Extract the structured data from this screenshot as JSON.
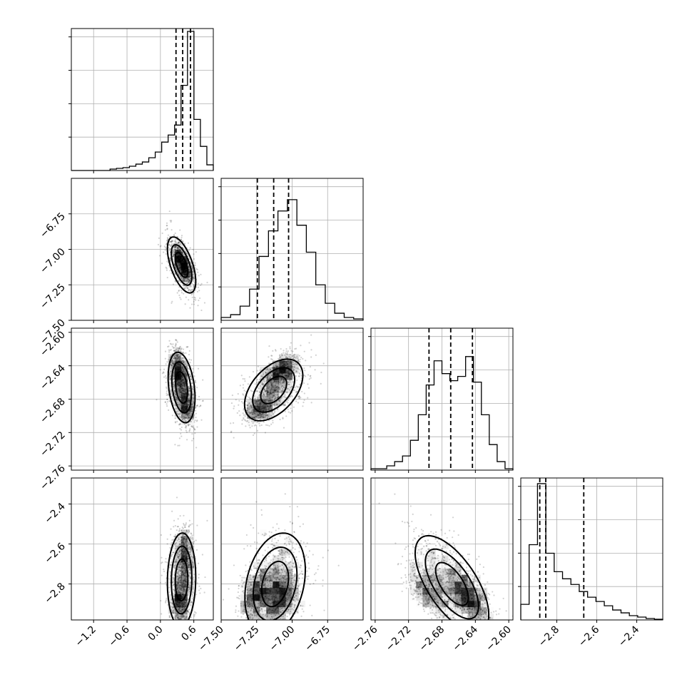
{
  "chart_data": {
    "type": "corner",
    "grid": true,
    "params": [
      {
        "range": [
          -1.6,
          0.95
        ],
        "ticks": [
          -1.2,
          -0.6,
          0.0,
          0.6
        ],
        "tick_labels": [
          "−1.2",
          "−0.6",
          "0.0",
          "0.6"
        ],
        "hist": [
          0,
          0,
          0,
          0,
          0,
          0,
          0.01,
          0.015,
          0.02,
          0.03,
          0.045,
          0.06,
          0.09,
          0.13,
          0.2,
          0.25,
          0.32,
          0.6,
          0.98,
          0.36,
          0.17,
          0.04
        ],
        "quantiles": [
          0.28,
          0.4,
          0.54
        ]
      },
      {
        "range": [
          -7.5,
          -6.5
        ],
        "ticks": [
          -7.5,
          -7.25,
          -7.0,
          -6.75
        ],
        "tick_labels": [
          "−7.50",
          "−7.25",
          "−7.00",
          "−6.75"
        ],
        "hist": [
          0.02,
          0.04,
          0.1,
          0.22,
          0.45,
          0.63,
          0.77,
          0.85,
          0.67,
          0.48,
          0.25,
          0.12,
          0.05,
          0.02,
          0.01
        ],
        "quantiles": [
          -7.245,
          -7.13,
          -7.025
        ]
      },
      {
        "range": [
          -2.765,
          -2.595
        ],
        "ticks": [
          -2.76,
          -2.72,
          -2.68,
          -2.64,
          -2.6
        ],
        "tick_labels": [
          "−2.76",
          "−2.72",
          "−2.68",
          "−2.64",
          "−2.60"
        ],
        "hist": [
          0.01,
          0.01,
          0.03,
          0.06,
          0.1,
          0.21,
          0.39,
          0.6,
          0.77,
          0.68,
          0.63,
          0.66,
          0.8,
          0.62,
          0.39,
          0.18,
          0.06,
          0.01
        ],
        "quantiles": [
          -2.6955,
          -2.6695,
          -2.6435
        ]
      },
      {
        "range": [
          -2.98,
          -2.27
        ],
        "ticks": [
          -2.8,
          -2.6,
          -2.4
        ],
        "tick_labels": [
          "−2.8",
          "−2.6",
          "−2.4"
        ],
        "hist": [
          0.11,
          0.53,
          0.96,
          0.47,
          0.34,
          0.29,
          0.25,
          0.2,
          0.16,
          0.13,
          0.1,
          0.07,
          0.05,
          0.03,
          0.02,
          0.01,
          0.005
        ],
        "quantiles": [
          -2.885,
          -2.855,
          -2.665
        ]
      }
    ],
    "pairs": [
      {
        "x": 0,
        "y": 1,
        "mean": [
          0.38,
          -7.11
        ],
        "cov": [
          [
            0.02,
            -0.009
          ],
          [
            -0.009,
            0.012
          ]
        ],
        "peaks": [
          [
            0.42,
            -7.13
          ],
          [
            0.36,
            -7.07
          ]
        ]
      },
      {
        "x": 0,
        "y": 2,
        "mean": [
          0.38,
          -2.666
        ],
        "cov": [
          [
            0.018,
            -0.0009
          ],
          [
            -0.0009,
            0.00055
          ]
        ],
        "peaks": [
          [
            0.32,
            -2.645
          ],
          [
            0.47,
            -2.688
          ]
        ]
      },
      {
        "x": 1,
        "y": 2,
        "mean": [
          -7.13,
          -2.669
        ],
        "cov": [
          [
            0.013,
            0.0011
          ],
          [
            0.0011,
            0.00042
          ]
        ],
        "peaks": [
          [
            -7.08,
            -2.646
          ],
          [
            -7.22,
            -2.69
          ]
        ]
      },
      {
        "x": 0,
        "y": 3,
        "mean": [
          0.38,
          -2.78
        ],
        "cov": [
          [
            0.02,
            0.001
          ],
          [
            0.001,
            0.017
          ]
        ],
        "peaks": [
          [
            0.36,
            -2.88
          ],
          [
            0.44,
            -2.65
          ]
        ]
      },
      {
        "x": 1,
        "y": 3,
        "mean": [
          -7.12,
          -2.8
        ],
        "cov": [
          [
            0.014,
            0.0045
          ],
          [
            0.0045,
            0.02
          ]
        ],
        "peaks": [
          [
            -7.08,
            -2.87
          ],
          [
            -7.25,
            -2.86
          ]
        ]
      },
      {
        "x": 2,
        "y": 3,
        "mean": [
          -2.668,
          -2.8
        ],
        "cov": [
          [
            0.0006,
            -0.0021
          ],
          [
            -0.0021,
            0.018
          ]
        ],
        "peaks": [
          [
            -2.646,
            -2.875
          ],
          [
            -2.698,
            -2.83
          ]
        ]
      }
    ]
  }
}
